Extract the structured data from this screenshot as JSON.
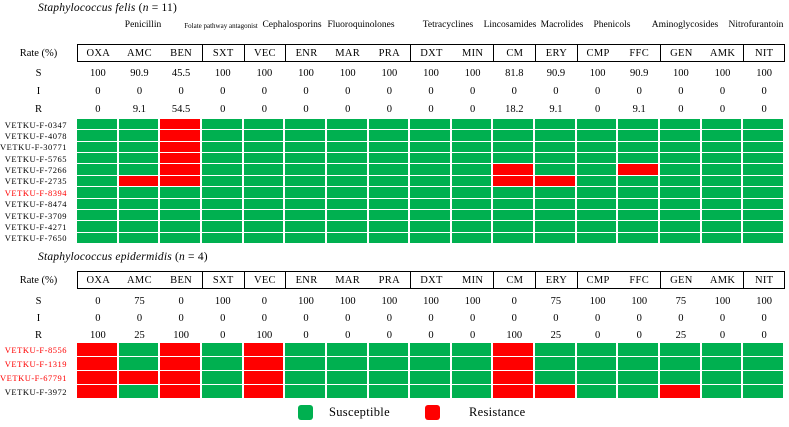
{
  "rate_header_label": "Rate (%)",
  "rate_row_labels": [
    "S",
    "I",
    "R"
  ],
  "legend": {
    "susceptible_label": "Susceptible",
    "resistance_label": "Resistance"
  },
  "colors": {
    "susceptible": "#00B050",
    "resistance": "#FF0000",
    "black_label": "#000000",
    "red_label": "#FF0000"
  },
  "antibiotic_classes": [
    {
      "name": "Penicillin",
      "span": 3
    },
    {
      "name": "Folate pathway antagonist",
      "span": 1
    },
    {
      "name": "Cephalosporins",
      "span": 1
    },
    {
      "name": "Fluoroquinolones",
      "span": 3
    },
    {
      "name": "Tetracyclines",
      "span": 2
    },
    {
      "name": "Lincosamides",
      "span": 1
    },
    {
      "name": "Macrolides",
      "span": 1
    },
    {
      "name": "Phenicols",
      "span": 2
    },
    {
      "name": "Aminoglycosides",
      "span": 2
    },
    {
      "name": "Nitrofurantoin",
      "span": 1
    }
  ],
  "chart_data": [
    {
      "type": "heatmap",
      "title_species": "Staphylococcus felis",
      "title_suffix_open": " (",
      "title_n": "n",
      "title_n_eq": " = 11",
      "title_suffix_close": ")",
      "categories": [
        "OXA",
        "AMC",
        "BEN",
        "SXT",
        "VEC",
        "ENR",
        "MAR",
        "PRA",
        "DXT",
        "MIN",
        "CM",
        "ERY",
        "CMP",
        "FFC",
        "GEN",
        "AMK",
        "NIT"
      ],
      "rates": {
        "S": [
          100,
          90.9,
          45.5,
          100,
          100,
          100,
          100,
          100,
          100,
          100,
          81.8,
          90.9,
          100,
          90.9,
          100,
          100,
          100
        ],
        "I": [
          0,
          0,
          0,
          0,
          0,
          0,
          0,
          0,
          0,
          0,
          0,
          0,
          0,
          0,
          0,
          0,
          0
        ],
        "R": [
          0,
          9.1,
          54.5,
          0,
          0,
          0,
          0,
          0,
          0,
          0,
          18.2,
          9.1,
          0,
          9.1,
          0,
          0,
          0
        ]
      },
      "cell_states": [
        "Susceptible",
        "Resistance"
      ],
      "legend_position": "bottom",
      "isolates": [
        {
          "id": "VETKU-F-0347",
          "label_color": "#000000",
          "resistant": [
            "BEN"
          ]
        },
        {
          "id": "VETKU-F-4078",
          "label_color": "#000000",
          "resistant": [
            "BEN"
          ]
        },
        {
          "id": "VETKU-F-30771",
          "label_color": "#000000",
          "resistant": [
            "BEN"
          ]
        },
        {
          "id": "VETKU-F-5765",
          "label_color": "#000000",
          "resistant": [
            "BEN"
          ]
        },
        {
          "id": "VETKU-F-7266",
          "label_color": "#000000",
          "resistant": [
            "BEN",
            "CM",
            "FFC"
          ]
        },
        {
          "id": "VETKU-F-2735",
          "label_color": "#000000",
          "resistant": [
            "AMC",
            "BEN",
            "CM",
            "ERY"
          ]
        },
        {
          "id": "VETKU-F-8394",
          "label_color": "#FF0000",
          "resistant": []
        },
        {
          "id": "VETKU-F-8474",
          "label_color": "#000000",
          "resistant": []
        },
        {
          "id": "VETKU-F-3709",
          "label_color": "#000000",
          "resistant": []
        },
        {
          "id": "VETKU-F-4271",
          "label_color": "#000000",
          "resistant": []
        },
        {
          "id": "VETKU-F-7650",
          "label_color": "#000000",
          "resistant": []
        }
      ]
    },
    {
      "type": "heatmap",
      "title_species": "Staphylococcus epidermidis",
      "title_suffix_open": " (",
      "title_n": "n",
      "title_n_eq": " = 4",
      "title_suffix_close": ")",
      "categories": [
        "OXA",
        "AMC",
        "BEN",
        "SXT",
        "VEC",
        "ENR",
        "MAR",
        "PRA",
        "DXT",
        "MIN",
        "CM",
        "ERY",
        "CMP",
        "FFC",
        "GEN",
        "AMK",
        "NIT"
      ],
      "rates": {
        "S": [
          0,
          75,
          0,
          100,
          0,
          100,
          100,
          100,
          100,
          100,
          0,
          75,
          100,
          100,
          75,
          100,
          100
        ],
        "I": [
          0,
          0,
          0,
          0,
          0,
          0,
          0,
          0,
          0,
          0,
          0,
          0,
          0,
          0,
          0,
          0,
          0
        ],
        "R": [
          100,
          25,
          100,
          0,
          100,
          0,
          0,
          0,
          0,
          0,
          100,
          25,
          0,
          0,
          25,
          0,
          0
        ]
      },
      "cell_states": [
        "Susceptible",
        "Resistance"
      ],
      "legend_position": "bottom",
      "isolates": [
        {
          "id": "VETKU-F-8556",
          "label_color": "#FF0000",
          "resistant": [
            "OXA",
            "BEN",
            "VEC",
            "CM"
          ]
        },
        {
          "id": "VETKU-F-1319",
          "label_color": "#FF0000",
          "resistant": [
            "OXA",
            "BEN",
            "VEC",
            "CM"
          ]
        },
        {
          "id": "VETKU-F-67791",
          "label_color": "#FF0000",
          "resistant": [
            "OXA",
            "AMC",
            "BEN",
            "VEC",
            "CM"
          ]
        },
        {
          "id": "VETKU-F-3972",
          "label_color": "#000000",
          "resistant": [
            "OXA",
            "BEN",
            "VEC",
            "CM",
            "ERY",
            "GEN"
          ]
        }
      ]
    }
  ]
}
